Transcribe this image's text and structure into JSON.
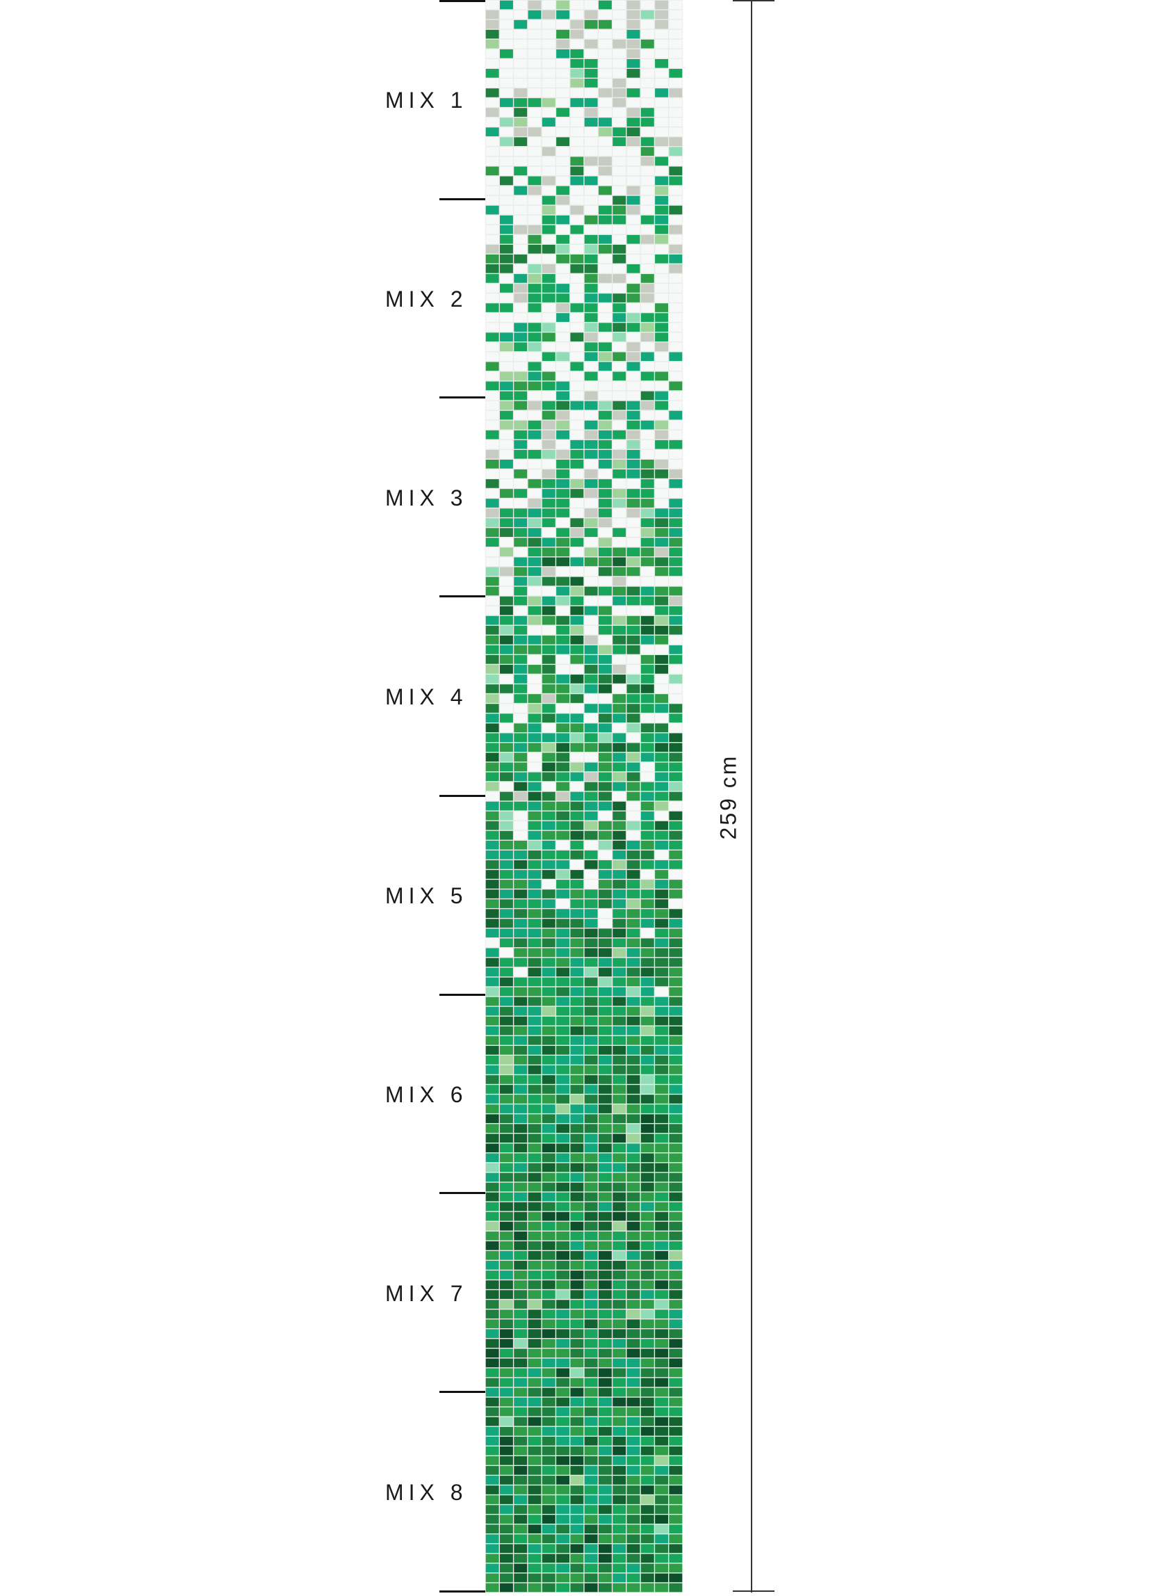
{
  "diagram": {
    "mix_labels": [
      "MIX 1",
      "MIX 2",
      "MIX 3",
      "MIX 4",
      "MIX 5",
      "MIX 6",
      "MIX 7",
      "MIX 8"
    ],
    "dimension_label": "259 cm"
  },
  "mosaic": {
    "columns": 14,
    "rows": 163,
    "palette": {
      "white": "#f7f9f8",
      "grey": "#c8cbc2",
      "pale_green": "#9fd39a",
      "mint": "#8fdcb6",
      "emerald": "#17a65b",
      "jade": "#12a77c",
      "green": "#2f9c48",
      "forest": "#1e7f3f",
      "dark_green": "#12632f",
      "deep": "#0c4f2a"
    },
    "grout_color": "#e9ece9"
  }
}
